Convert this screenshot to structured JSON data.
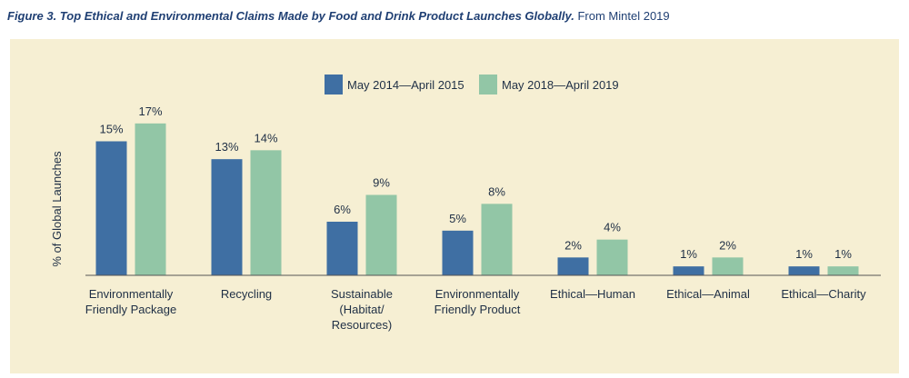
{
  "caption": {
    "figure_label": "Figure 3. Top Ethical and Environmental Claims Made by Food and Drink Product Launches Globally.",
    "source": "From Mintel 2019"
  },
  "colors": {
    "panel_background": "#f6efd3",
    "series_1": "#3f6fa3",
    "series_2": "#92c6a6",
    "text": "#1f2f45",
    "axis": "#555555"
  },
  "chart_data": {
    "type": "bar",
    "title": "",
    "xlabel": "",
    "ylabel": "% of Global Launches",
    "ylim": [
      0,
      18
    ],
    "grid": false,
    "legend_position": "top-center",
    "categories": [
      "Environmentally Friendly Package",
      "Recycling",
      "Sustainable (Habitat/ Resources)",
      "Environmentally Friendly Product",
      "Ethical—Human",
      "Ethical—Animal",
      "Ethical—Charity"
    ],
    "category_label_lines": [
      [
        "Environmentally",
        "Friendly Package"
      ],
      [
        "Recycling"
      ],
      [
        "Sustainable",
        "(Habitat/",
        "Resources)"
      ],
      [
        "Environmentally",
        "Friendly Product"
      ],
      [
        "Ethical—Human"
      ],
      [
        "Ethical—Animal"
      ],
      [
        "Ethical—Charity"
      ]
    ],
    "series": [
      {
        "name": "May 2014—April 2015",
        "values": [
          15,
          13,
          6,
          5,
          2,
          1,
          1
        ],
        "labels": [
          "15%",
          "13%",
          "6%",
          "5%",
          "2%",
          "1%",
          "1%"
        ]
      },
      {
        "name": "May 2018—April 2019",
        "values": [
          17,
          14,
          9,
          8,
          4,
          2,
          1
        ],
        "labels": [
          "17%",
          "14%",
          "9%",
          "8%",
          "4%",
          "2%",
          "1%"
        ]
      }
    ]
  }
}
